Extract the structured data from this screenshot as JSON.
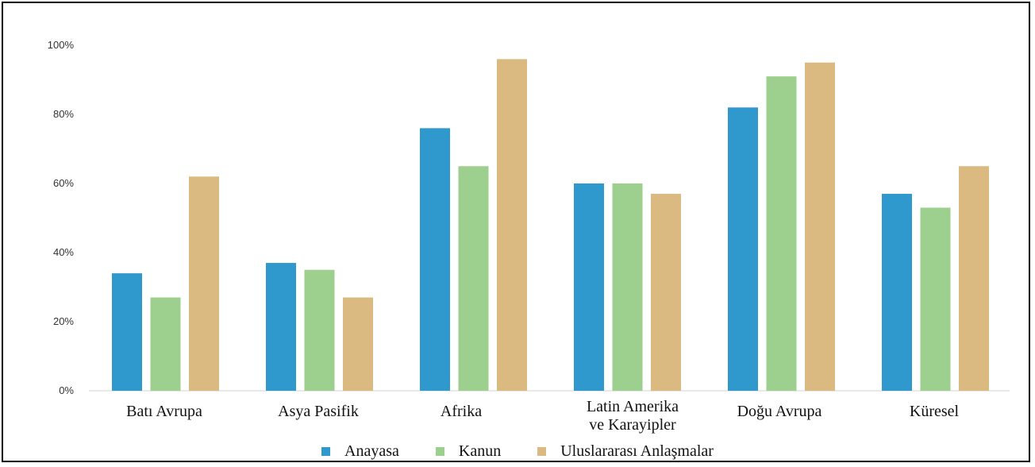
{
  "chart_data": {
    "type": "bar",
    "title": "",
    "xlabel": "",
    "ylabel": "",
    "ylim": [
      0,
      100
    ],
    "y_ticks": [
      "0%",
      "20%",
      "40%",
      "60%",
      "80%",
      "100%"
    ],
    "categories": [
      [
        "Batı Avrupa"
      ],
      [
        "Asya Pasifik"
      ],
      [
        "Afrika"
      ],
      [
        "Latin Amerika",
        "ve Karayipler"
      ],
      [
        "Doğu Avrupa"
      ],
      [
        "Küresel"
      ]
    ],
    "series": [
      {
        "name": "Anayasa",
        "color": "#2f98cc",
        "values": [
          34,
          37,
          76,
          60,
          82,
          57
        ]
      },
      {
        "name": "Kanun",
        "color": "#9dd08f",
        "values": [
          27,
          35,
          65,
          60,
          91,
          53
        ]
      },
      {
        "name": "Uluslararası Anlaşmalar",
        "color": "#dbba82",
        "values": [
          62,
          27,
          96,
          57,
          95,
          65
        ]
      }
    ],
    "grid": false,
    "legend_position": "bottom"
  }
}
